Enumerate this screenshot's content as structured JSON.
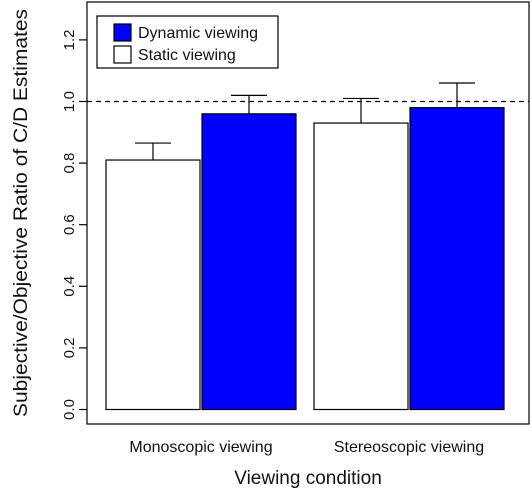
{
  "chart_data": {
    "type": "bar",
    "title": "",
    "xlabel": "Viewing condition",
    "ylabel": "Subjective/Objective Ratio of C/D Estimates",
    "ylim": [
      0,
      1.2
    ],
    "yticks": [
      0.0,
      0.2,
      0.4,
      0.6,
      0.8,
      1.0,
      1.2
    ],
    "ytick_labels": [
      "0.0",
      "0.2",
      "0.4",
      "0.6",
      "0.8",
      "1.0",
      "1.2"
    ],
    "categories": [
      "Monoscopic viewing",
      "Stereoscopic viewing"
    ],
    "series": [
      {
        "name": "Static viewing",
        "color": "#ffffff",
        "values": [
          0.81,
          0.93
        ],
        "error": [
          0.055,
          0.08
        ]
      },
      {
        "name": "Dynamic viewing",
        "color": "#0000ff",
        "values": [
          0.96,
          0.98
        ],
        "error": [
          0.06,
          0.08
        ]
      }
    ],
    "reference_line": {
      "y": 1.0,
      "style": "dashed"
    },
    "legend_position": "top-left",
    "legend_order": [
      "Dynamic viewing",
      "Static viewing"
    ],
    "grid": false
  }
}
